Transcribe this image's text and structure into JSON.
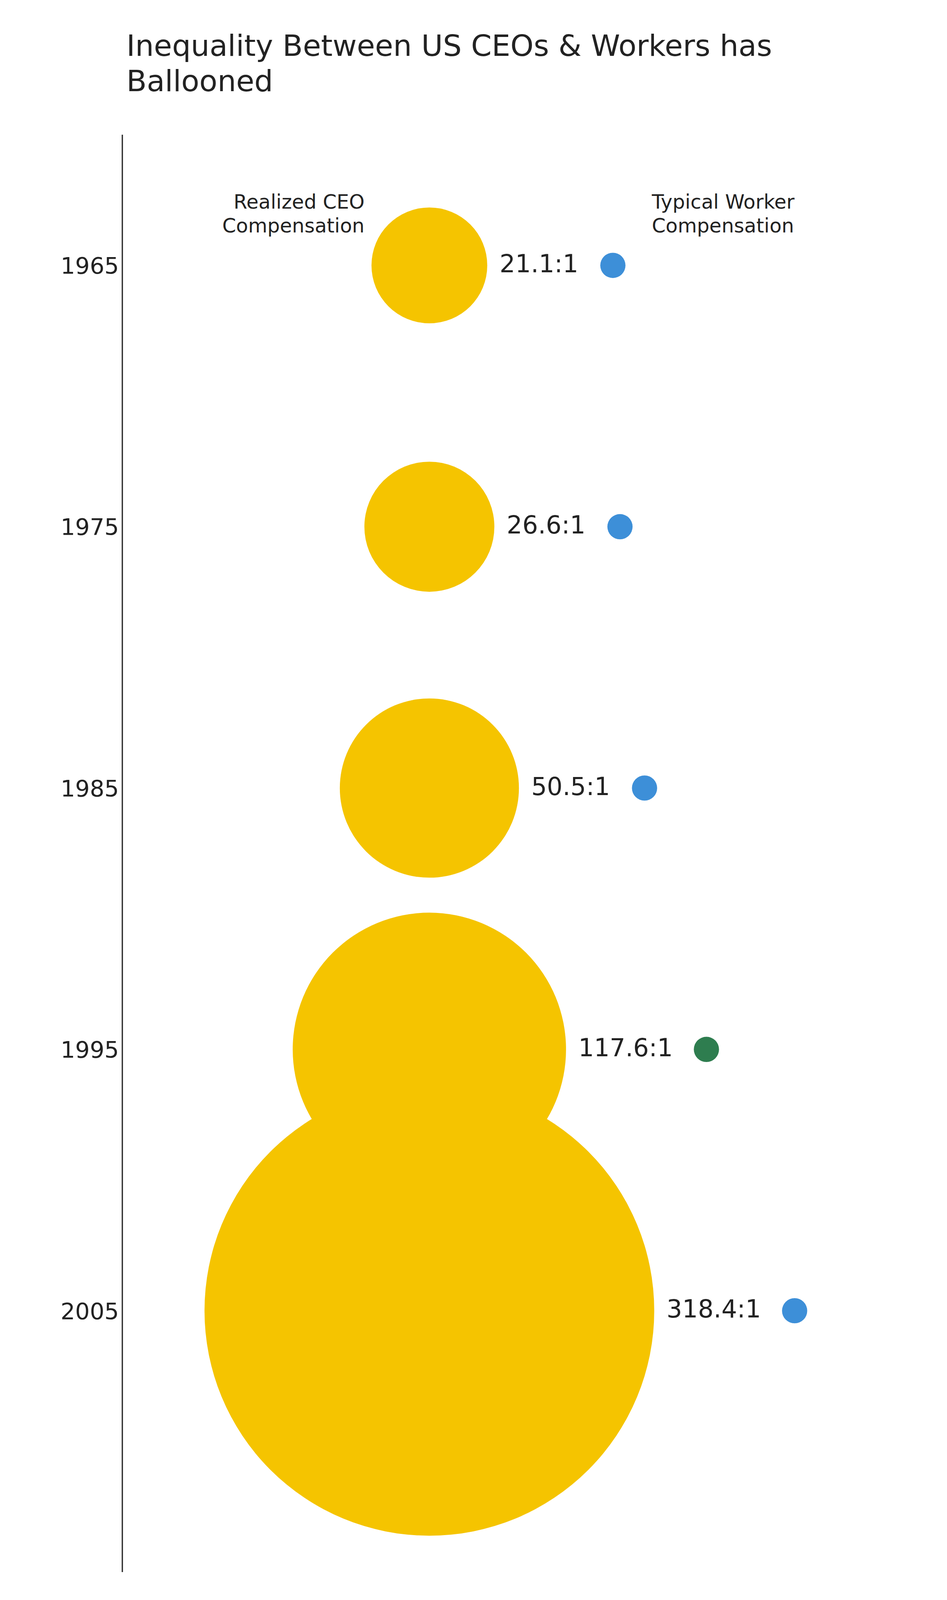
{
  "chart_data": {
    "type": "bubble",
    "title": "Inequality Between US CEOs & Workers has Ballooned",
    "x": [
      1965,
      1975,
      1985,
      1995,
      2005
    ],
    "xlim": [
      1960,
      2015
    ],
    "xticks": [
      1965,
      1975,
      1985,
      1995,
      2005
    ],
    "series": [
      {
        "name": "Realized CEO Compensation",
        "color": "#f5c400",
        "values": [
          21.1,
          26.6,
          50.5,
          117.6,
          318.4
        ],
        "value_labels": [
          "21.1:1",
          "26.6:1",
          "50.5:1",
          "117.6:1",
          "318.4:1"
        ]
      },
      {
        "name": "Typical Worker Compensation",
        "colors": [
          "#3d8fd8",
          "#3d8fd8",
          "#3d8fd8",
          "#2e7d4f",
          "#3d8fd8"
        ],
        "values": [
          1,
          1,
          1,
          1,
          1
        ]
      }
    ],
    "data_labels": true,
    "grid": false
  }
}
